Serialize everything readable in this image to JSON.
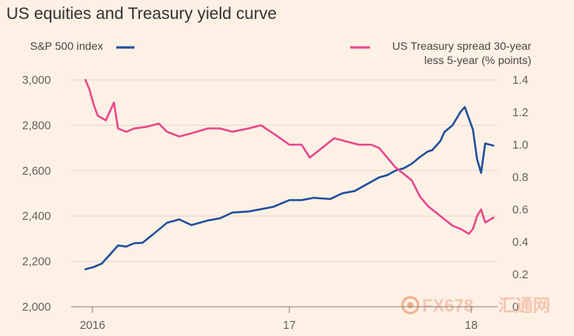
{
  "chart_data": {
    "type": "line",
    "title": "US equities and Treasury yield curve",
    "x_ticks": [
      "2016",
      "17",
      "18"
    ],
    "left_axis": {
      "label": "S&P 500 index",
      "ylim": [
        2000,
        3000
      ],
      "ticks": [
        "3,000",
        "2,800",
        "2,600",
        "2,400",
        "2,200",
        "2,000"
      ]
    },
    "right_axis": {
      "label_line1": "US Treasury spread 30-year",
      "label_line2": "less 5-year (% points)",
      "ylim": [
        0,
        1.4
      ],
      "ticks": [
        "1.4",
        "1.2",
        "1.0",
        "0.8",
        "0.6",
        "0.4",
        "0.2",
        "0"
      ]
    },
    "series": [
      {
        "name": "S&P 500 index",
        "axis": "left",
        "color": "#1f4f9c",
        "x": [
          0,
          0.02,
          0.04,
          0.06,
          0.08,
          0.1,
          0.12,
          0.14,
          0.17,
          0.2,
          0.23,
          0.26,
          0.3,
          0.33,
          0.36,
          0.4,
          0.43,
          0.46,
          0.5,
          0.53,
          0.56,
          0.6,
          0.63,
          0.66,
          0.7,
          0.72,
          0.74,
          0.76,
          0.78,
          0.8,
          0.82,
          0.84,
          0.85,
          0.87,
          0.88,
          0.9,
          0.92,
          0.93,
          0.95,
          0.96,
          0.97,
          0.98,
          1.0
        ],
        "y": [
          2165,
          2175,
          2190,
          2230,
          2270,
          2265,
          2280,
          2282,
          2325,
          2370,
          2385,
          2360,
          2380,
          2390,
          2415,
          2420,
          2430,
          2440,
          2470,
          2470,
          2480,
          2475,
          2500,
          2510,
          2550,
          2570,
          2580,
          2600,
          2610,
          2630,
          2660,
          2685,
          2690,
          2730,
          2770,
          2800,
          2860,
          2880,
          2780,
          2650,
          2590,
          2720,
          2710
        ]
      },
      {
        "name": "US Treasury spread 30-year less 5-year (% points)",
        "axis": "right",
        "color": "#e8478b",
        "x": [
          0,
          0.01,
          0.02,
          0.03,
          0.05,
          0.07,
          0.08,
          0.1,
          0.12,
          0.15,
          0.18,
          0.2,
          0.23,
          0.26,
          0.3,
          0.33,
          0.36,
          0.4,
          0.43,
          0.46,
          0.5,
          0.53,
          0.55,
          0.58,
          0.61,
          0.64,
          0.67,
          0.7,
          0.72,
          0.74,
          0.76,
          0.78,
          0.8,
          0.82,
          0.84,
          0.86,
          0.88,
          0.9,
          0.92,
          0.94,
          0.95,
          0.96,
          0.97,
          0.98,
          1.0
        ],
        "y": [
          1.4,
          1.34,
          1.25,
          1.18,
          1.15,
          1.26,
          1.1,
          1.08,
          1.1,
          1.11,
          1.13,
          1.08,
          1.05,
          1.07,
          1.1,
          1.1,
          1.08,
          1.1,
          1.12,
          1.07,
          1.0,
          1.0,
          0.92,
          0.98,
          1.04,
          1.02,
          1.0,
          1.0,
          0.98,
          0.92,
          0.86,
          0.82,
          0.78,
          0.68,
          0.62,
          0.58,
          0.54,
          0.5,
          0.48,
          0.45,
          0.48,
          0.56,
          0.6,
          0.52,
          0.55
        ]
      }
    ]
  },
  "watermark": {
    "text": "FX678",
    "text_cn": "汇通网"
  }
}
